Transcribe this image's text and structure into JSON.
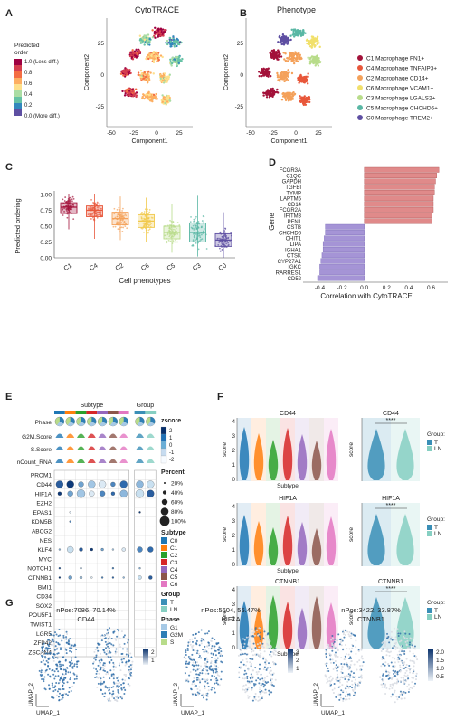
{
  "panels": {
    "A": {
      "letter": "A",
      "title": "CytoTRACE",
      "legend_title_1": "Predicted",
      "legend_title_2": "order",
      "legend_labels": [
        "1.0 (Less diff.)",
        "0.8",
        "0.6",
        "0.4",
        "0.2",
        "0.0 (More diff.)"
      ],
      "xlabel": "Component1",
      "ylabel": "Component2",
      "xticks": [
        "-50",
        "-25",
        "0",
        "25"
      ],
      "yticks": [
        "25",
        "0",
        "-25"
      ]
    },
    "B": {
      "letter": "B",
      "title": "Phenotype",
      "xlabel": "Component1",
      "ylabel": "Component2",
      "xticks": [
        "-50",
        "-25",
        "0",
        "25"
      ],
      "yticks": [
        "25",
        "0",
        "-25"
      ],
      "legend": [
        {
          "label": "C1 Macrophage FN1+",
          "color": "#a3123a"
        },
        {
          "label": "C4 Macrophage TNFAIP3+",
          "color": "#e8573a"
        },
        {
          "label": "C2 Macrophage CD14+",
          "color": "#f4a15a"
        },
        {
          "label": "C6 Macrophage VCAM1+",
          "color": "#f1e06b"
        },
        {
          "label": "C3 Macrophage LGALS2+",
          "color": "#b8dc8a"
        },
        {
          "label": "C5 Macrophage CHCHD6+",
          "color": "#59b7a4"
        },
        {
          "label": "C0 Macrophage TREM2+",
          "color": "#5e4fa2"
        }
      ]
    },
    "C": {
      "letter": "C",
      "ylabel": "Predicted ordering",
      "xlabel": "Cell phenotypes",
      "yticks": [
        "1.00",
        "0.75",
        "0.50",
        "0.25",
        "0.00"
      ]
    },
    "D": {
      "letter": "D",
      "ylabel": "Gene",
      "xlabel": "Correlation with CytoTRACE",
      "xticks": [
        "-0.4",
        "-0.2",
        "0.0",
        "0.2",
        "0.4",
        "0.6"
      ]
    },
    "E": {
      "letter": "E",
      "subtype_header": "Subtype",
      "group_header": "Group",
      "track_labels": [
        "Phase",
        "G2M.Score",
        "S.Score",
        "nCount_RNA"
      ],
      "genes": [
        "PROM1",
        "CD44",
        "HIF1A",
        "EZH2",
        "EPAS1",
        "KDM5B",
        "ABCG2",
        "NES",
        "KLF4",
        "MYC",
        "NOTCH1",
        "CTNNB1",
        "BMI1",
        "CD34",
        "SOX2",
        "POU5F1",
        "TWIST1",
        "LGR5",
        "ZFP42",
        "ZSCAN4"
      ],
      "zscore_title": "zscore",
      "zscore_ticks": [
        "2",
        "1",
        "0",
        "-1",
        "-2"
      ],
      "percent_title": "Percent",
      "percent_labels": [
        "20%",
        "40%",
        "60%",
        "80%",
        "100%"
      ],
      "subtype_title": "Subtype",
      "subtype_items": [
        "C0",
        "C1",
        "C2",
        "C3",
        "C4",
        "C5",
        "C6"
      ],
      "group_title": "Group",
      "group_items": [
        "T",
        "LN"
      ],
      "phase_title": "Phase",
      "phase_items": [
        "G1",
        "G2M",
        "S"
      ]
    },
    "F": {
      "letter": "F",
      "genes": [
        "CD44",
        "HIF1A",
        "CTNNB1"
      ],
      "ylabel": "score",
      "xlabel": "Subtype",
      "sig": "****",
      "group_title": "Group:",
      "group_items": [
        "T",
        "LN"
      ],
      "ytick_sets": [
        [
          "4",
          "3",
          "2",
          "1",
          "0"
        ],
        [
          "4",
          "3",
          "2",
          "1",
          "0"
        ],
        [
          "4",
          "3",
          "2",
          "1",
          "0"
        ]
      ]
    },
    "G": {
      "letter": "G",
      "panels": [
        {
          "header": "nPos:7086, 70.14%",
          "gene": "CD44",
          "scale": [
            "2",
            "1"
          ]
        },
        {
          "header": "nPos:5604, 55.47%",
          "gene": "HIF1A",
          "scale": [
            "3",
            "2",
            "1"
          ]
        },
        {
          "header": "nPos:3422, 33.87%",
          "gene": "CTNNB1",
          "scale": [
            "2.0",
            "1.5",
            "1.0",
            "0.5"
          ]
        }
      ],
      "xlabel": "UMAP_1",
      "ylabel": "UMAP_2"
    }
  },
  "colors": {
    "subtypes": [
      "#1f77b4",
      "#ff7f0e",
      "#2ca02c",
      "#d62728",
      "#9467bd",
      "#8c564b",
      "#e377c2"
    ],
    "group_T": "#3a8fb7",
    "group_LN": "#86cfc2",
    "bar_pos": "#e08a8a",
    "bar_neg": "#a594d6"
  },
  "chart_data": [
    {
      "type": "bar",
      "title": "",
      "ylabel": "Predicted ordering",
      "xlabel": "Cell phenotypes",
      "chart": "box",
      "categories": [
        "C1",
        "C4",
        "C2",
        "C6",
        "C5",
        "C3",
        "C0"
      ],
      "median": [
        0.8,
        0.75,
        0.62,
        0.58,
        0.4,
        0.4,
        0.28
      ],
      "q1": [
        0.7,
        0.65,
        0.52,
        0.48,
        0.3,
        0.25,
        0.18
      ],
      "q3": [
        0.87,
        0.82,
        0.72,
        0.68,
        0.5,
        0.55,
        0.38
      ],
      "min": [
        0.45,
        0.3,
        0.28,
        0.25,
        0.08,
        0.02,
        0.0
      ],
      "max": [
        1.0,
        1.0,
        0.97,
        0.95,
        0.85,
        0.98,
        0.72
      ],
      "ylim": [
        0,
        1
      ]
    },
    {
      "type": "bar",
      "orientation": "horizontal",
      "xlabel": "Correlation with CytoTRACE",
      "ylabel": "Gene",
      "categories": [
        "FCGR3A",
        "C1QC",
        "GAPDH",
        "TGFBI",
        "TYMP",
        "LAPTM5",
        "CD14",
        "FCGR2A",
        "IFITM3",
        "PFN1",
        "CSTB",
        "CHCHD6",
        "CHIT1",
        "LIPA",
        "IGHA1",
        "CTSK",
        "CYP27A1",
        "IGKC",
        "RARRES1",
        "CD52"
      ],
      "values": [
        0.67,
        0.65,
        0.64,
        0.63,
        0.63,
        0.62,
        0.62,
        0.62,
        0.61,
        0.61,
        -0.35,
        -0.35,
        -0.36,
        -0.37,
        -0.37,
        -0.38,
        -0.39,
        -0.4,
        -0.4,
        -0.42
      ],
      "xlim": [
        -0.55,
        0.75
      ]
    }
  ]
}
